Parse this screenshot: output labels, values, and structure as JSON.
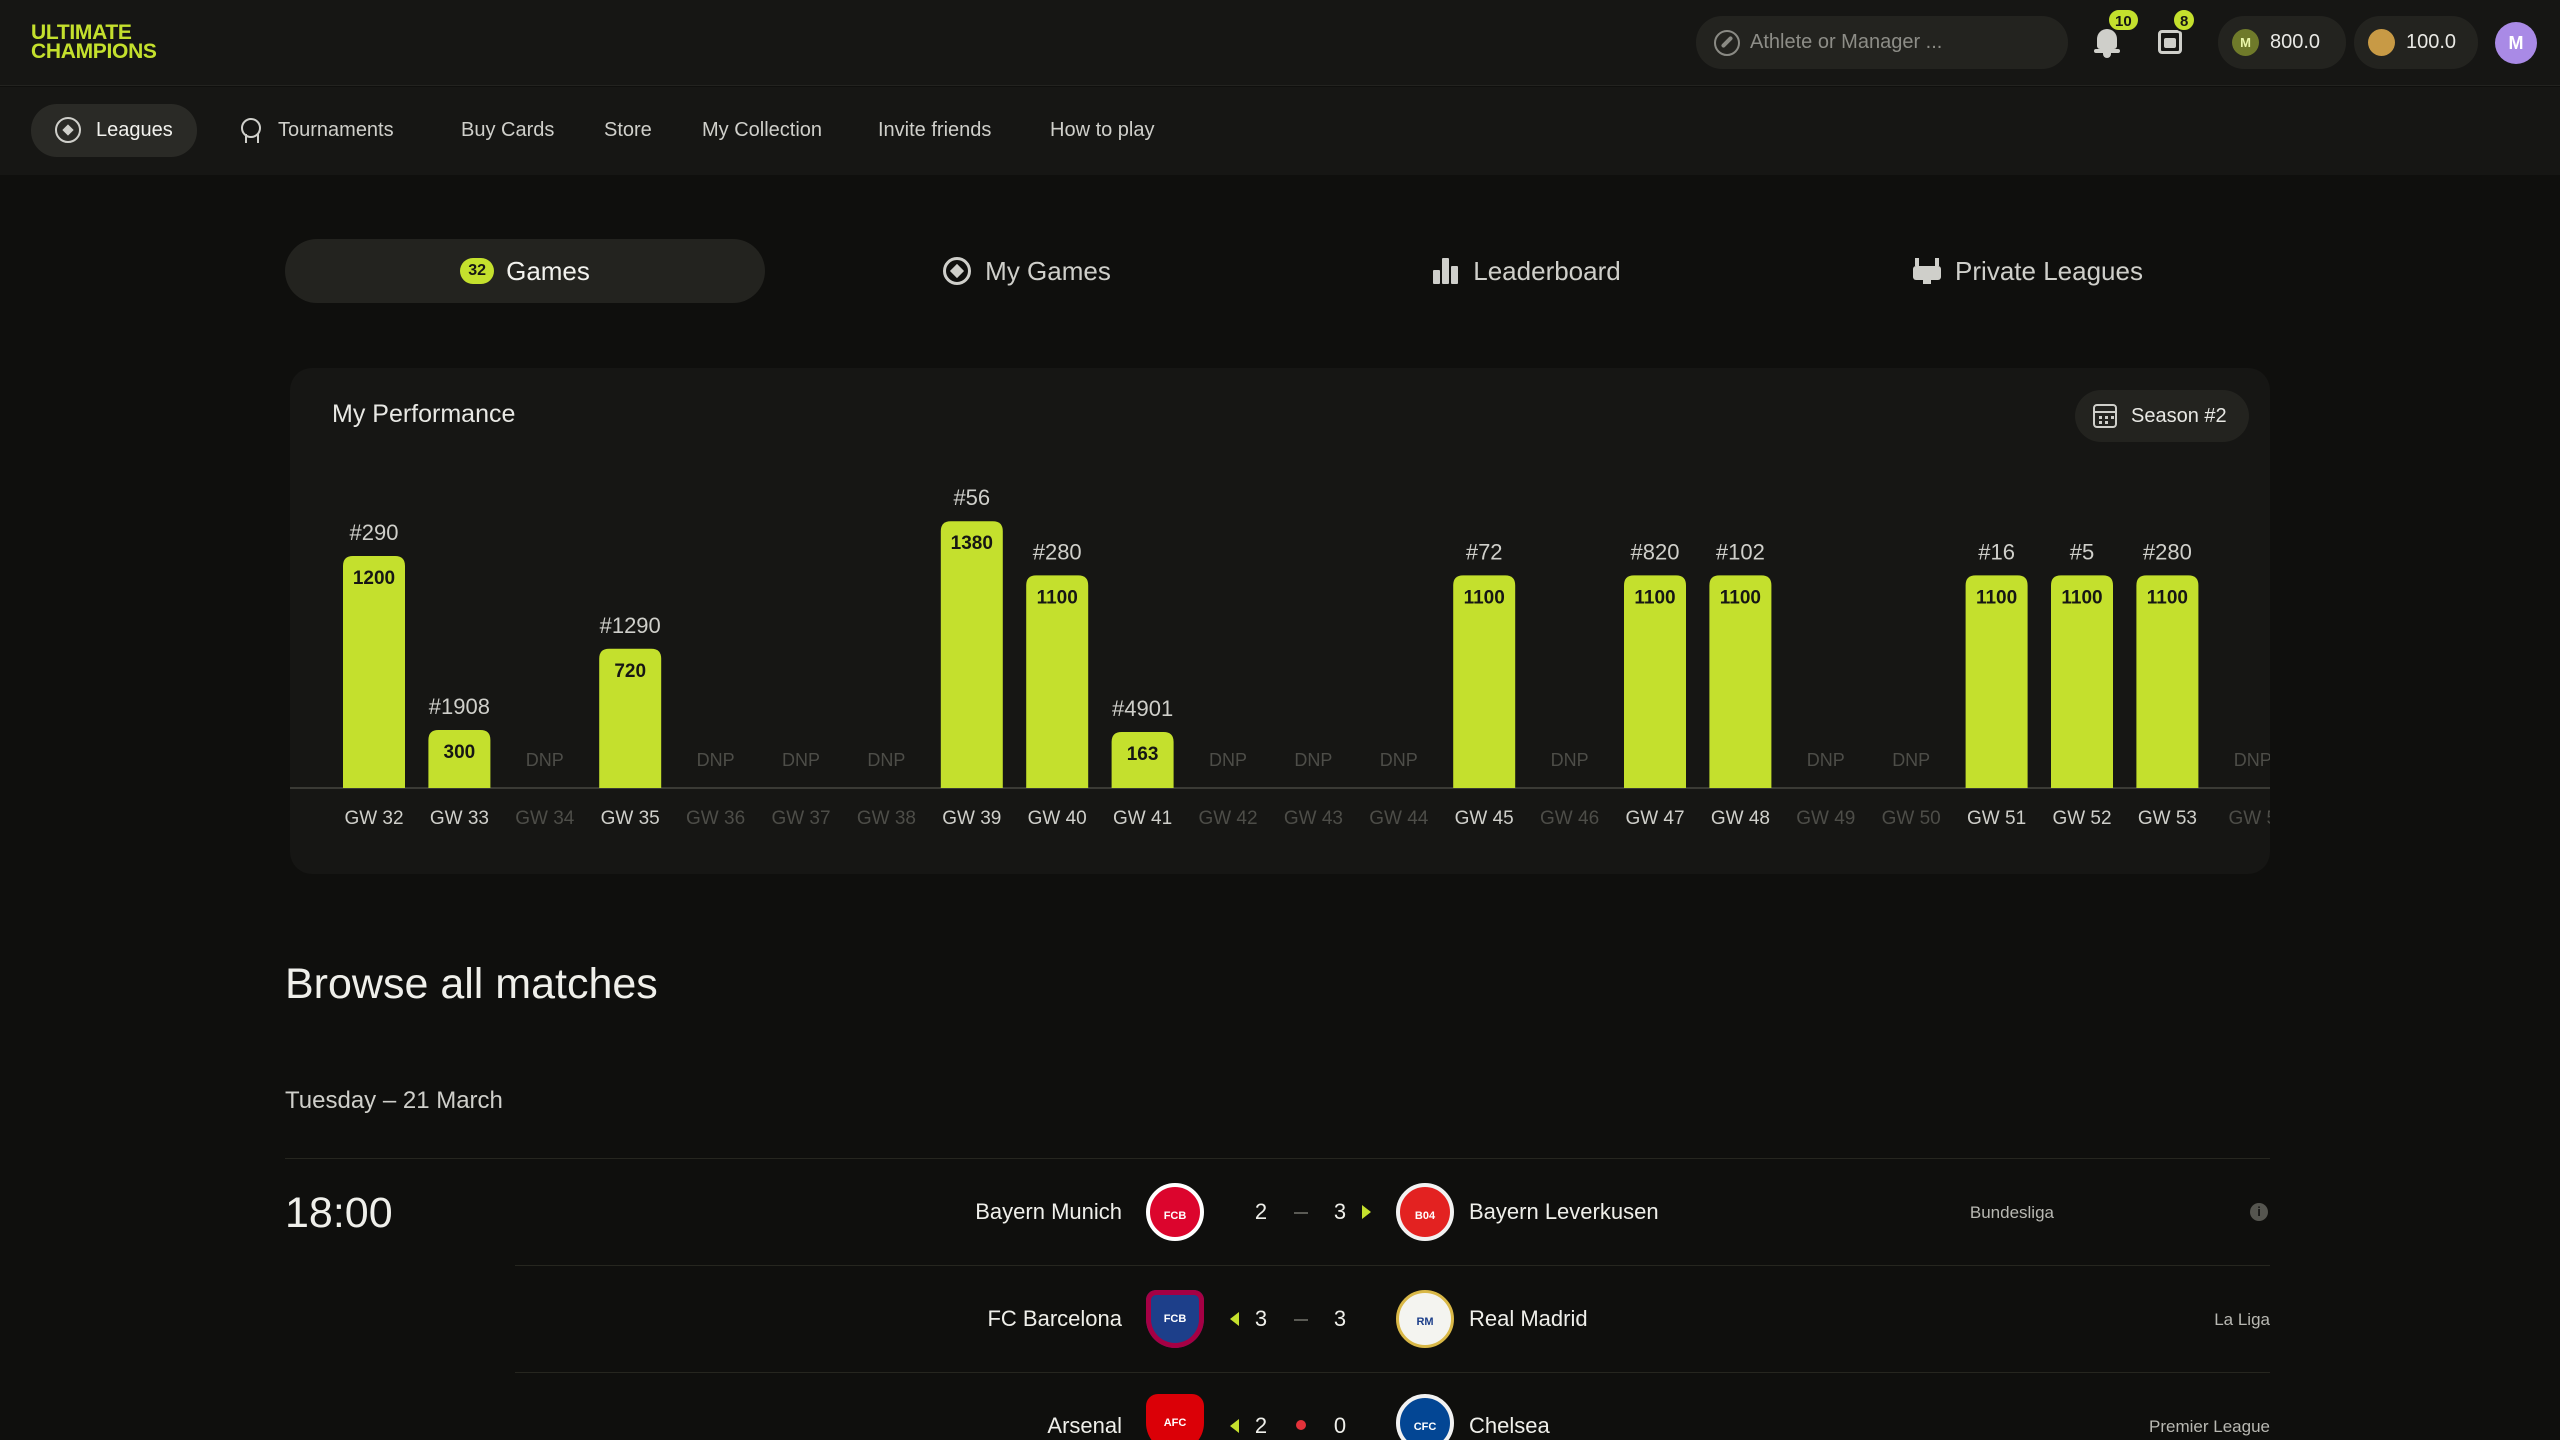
{
  "app": {
    "logo_line1": "ULTIMATE",
    "logo_line2": "CHAMPIONS",
    "brand_color": "#c4e02d"
  },
  "header": {
    "search_placeholder": "Athlete or Manager ...",
    "notifications_count": "10",
    "inbox_count": "8",
    "m_balance": "800.0",
    "m_coin_letter": "M",
    "coin_balance": "100.0",
    "avatar_letter": "M"
  },
  "nav": {
    "items": [
      {
        "label": "Leagues",
        "active": true
      },
      {
        "label": "Tournaments"
      },
      {
        "label": "Buy Cards"
      },
      {
        "label": "Store"
      },
      {
        "label": "My Collection"
      },
      {
        "label": "Invite friends"
      },
      {
        "label": "How to play"
      }
    ]
  },
  "tabs": [
    {
      "label": "Games",
      "count": "32",
      "active": true
    },
    {
      "label": "My Games"
    },
    {
      "label": "Leaderboard"
    },
    {
      "label": "Private Leagues"
    }
  ],
  "performance": {
    "title": "My Performance",
    "season_label": "Season #2"
  },
  "chart_data": {
    "type": "bar",
    "title": "My Performance",
    "dnp_label": "DNP",
    "ylim": [
      0,
      1500
    ],
    "categories": [
      "GW 32",
      "GW 33",
      "GW 34",
      "GW 35",
      "GW 36",
      "GW 37",
      "GW 38",
      "GW 39",
      "GW 40",
      "GW 41",
      "GW 42",
      "GW 43",
      "GW 44",
      "GW 45",
      "GW 46",
      "GW 47",
      "GW 48",
      "GW 49",
      "GW 50",
      "GW 51",
      "GW 52",
      "GW 53",
      "GW 5"
    ],
    "values": [
      1200,
      300,
      null,
      720,
      null,
      null,
      null,
      1380,
      1100,
      163,
      null,
      null,
      null,
      1100,
      null,
      1100,
      1100,
      null,
      null,
      1100,
      1100,
      1100,
      null
    ],
    "ranks": [
      "#290",
      "#1908",
      null,
      "#1290",
      null,
      null,
      null,
      "#56",
      "#280",
      "#4901",
      null,
      null,
      null,
      "#72",
      null,
      "#820",
      "#102",
      null,
      null,
      "#16",
      "#5",
      "#280",
      null
    ]
  },
  "matches": {
    "heading": "Browse all matches",
    "date_label": "Tuesday – 21 March",
    "kickoff": "18:00",
    "rows": [
      {
        "home": "Bayern Munich",
        "home_crest": "FCB",
        "home_score": "2",
        "away_score": "3",
        "away": "Bayern Leverkusen",
        "away_crest": "B04",
        "league": "Bundesliga"
      },
      {
        "home": "FC Barcelona",
        "home_crest": "FCB",
        "home_score": "3",
        "away_score": "3",
        "away": "Real Madrid",
        "away_crest": "RM",
        "league": "La Liga"
      },
      {
        "home": "Arsenal",
        "home_crest": "AFC",
        "home_score": "2",
        "away_score": "0",
        "away": "Chelsea",
        "away_crest": "CFC",
        "league": "Premier League"
      }
    ]
  }
}
